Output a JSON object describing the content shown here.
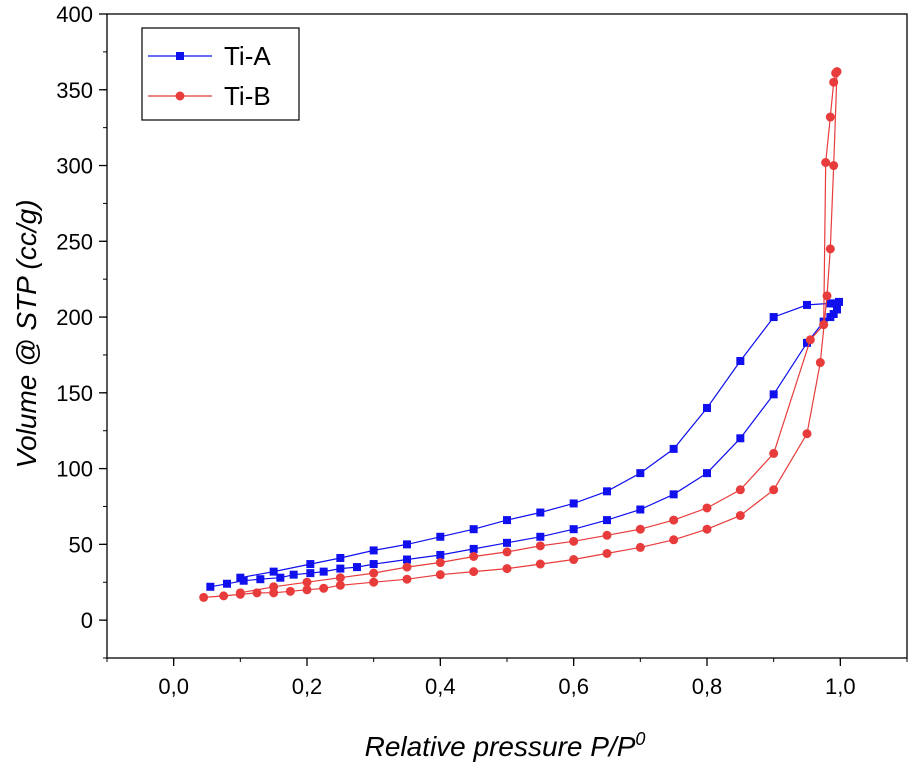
{
  "chart_data": {
    "type": "line",
    "xlabel": "Relative pressure P/P",
    "xlabel_sup": "0",
    "ylabel": "Volume @ STP (cc/g)",
    "xlim": [
      -0.1,
      1.1
    ],
    "ylim": [
      -25,
      400
    ],
    "xticks": [
      0.0,
      0.2,
      0.4,
      0.6,
      0.8,
      1.0
    ],
    "xtick_labels": [
      "0,0",
      "0,2",
      "0,4",
      "0,6",
      "0,8",
      "1,0"
    ],
    "yticks": [
      0,
      50,
      100,
      150,
      200,
      250,
      300,
      350,
      400
    ],
    "ytick_labels": [
      "0",
      "50",
      "100",
      "150",
      "200",
      "250",
      "300",
      "350",
      "400"
    ],
    "grid": false,
    "legend_position": "top-left",
    "series": [
      {
        "name": "Ti-A",
        "color": "#1010ee",
        "marker": "square",
        "adsorption": {
          "x": [
            0.055,
            0.08,
            0.105,
            0.13,
            0.16,
            0.18,
            0.205,
            0.225,
            0.25,
            0.275,
            0.3,
            0.35,
            0.4,
            0.45,
            0.5,
            0.55,
            0.6,
            0.65,
            0.7,
            0.75,
            0.8,
            0.85,
            0.9,
            0.95,
            0.975,
            0.985,
            0.99,
            0.995
          ],
          "y": [
            22,
            24,
            26,
            27,
            28,
            30,
            31,
            32,
            34,
            35,
            37,
            40,
            43,
            47,
            51,
            55,
            60,
            66,
            73,
            83,
            97,
            120,
            149,
            183,
            197,
            200,
            202,
            205
          ]
        },
        "desorption": {
          "x": [
            0.998,
            0.995,
            0.99,
            0.985,
            0.95,
            0.9,
            0.85,
            0.8,
            0.75,
            0.7,
            0.65,
            0.6,
            0.55,
            0.5,
            0.45,
            0.4,
            0.35,
            0.3,
            0.25,
            0.205,
            0.15,
            0.1
          ],
          "y": [
            210,
            209,
            209,
            209,
            208,
            200,
            171,
            140,
            113,
            97,
            85,
            77,
            71,
            66,
            60,
            55,
            50,
            46,
            41,
            37,
            32,
            28
          ]
        }
      },
      {
        "name": "Ti-B",
        "color": "#e83c3c",
        "marker": "circle",
        "adsorption": {
          "x": [
            0.045,
            0.075,
            0.1,
            0.125,
            0.15,
            0.175,
            0.2,
            0.225,
            0.25,
            0.3,
            0.35,
            0.4,
            0.45,
            0.5,
            0.55,
            0.6,
            0.65,
            0.7,
            0.75,
            0.8,
            0.85,
            0.9,
            0.95,
            0.97,
            0.98,
            0.985,
            0.99,
            0.995
          ],
          "y": [
            15,
            16,
            17,
            18,
            18,
            19,
            20,
            21,
            23,
            25,
            27,
            30,
            32,
            34,
            37,
            40,
            44,
            48,
            53,
            60,
            69,
            86,
            123,
            170,
            214,
            245,
            300,
            362
          ]
        },
        "desorption": {
          "x": [
            0.993,
            0.99,
            0.985,
            0.978,
            0.975,
            0.955,
            0.9,
            0.85,
            0.8,
            0.75,
            0.7,
            0.65,
            0.6,
            0.55,
            0.5,
            0.45,
            0.4,
            0.35,
            0.3,
            0.25,
            0.2,
            0.15,
            0.1
          ],
          "y": [
            361,
            355,
            332,
            302,
            195,
            185,
            110,
            86,
            74,
            66,
            60,
            56,
            52,
            49,
            45,
            42,
            38,
            35,
            31,
            28,
            25,
            22,
            18
          ]
        }
      }
    ]
  }
}
